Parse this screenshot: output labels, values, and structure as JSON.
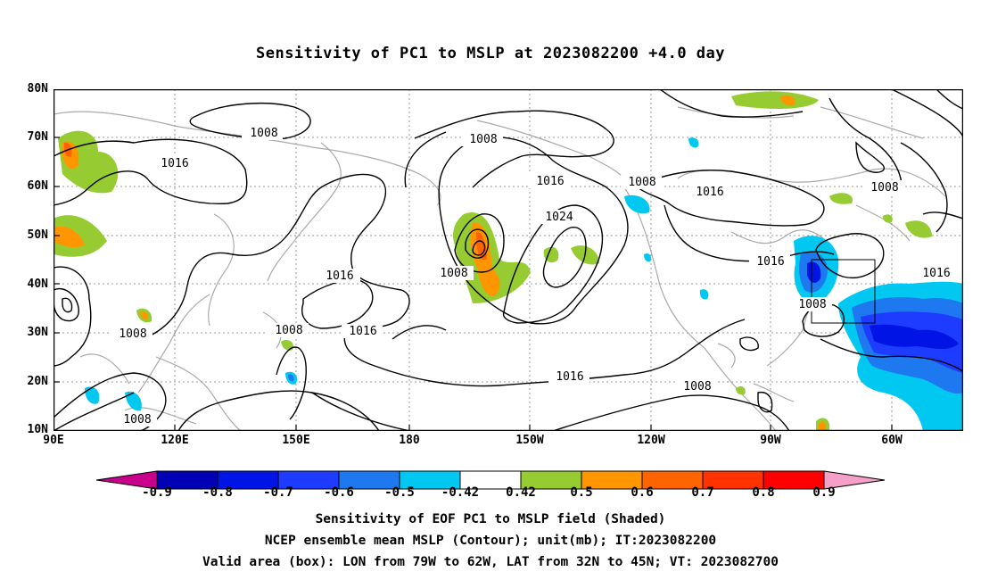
{
  "title": "Sensitivity of PC1 to MSLP at 2023082200 +4.0 day",
  "lat_labels": [
    "80N",
    "70N",
    "60N",
    "50N",
    "40N",
    "30N",
    "20N",
    "10N"
  ],
  "lon_labels": [
    "90E",
    "120E",
    "150E",
    "180",
    "150W",
    "120W",
    "90W",
    "60W"
  ],
  "colorbar": {
    "labels": [
      "-0.9",
      "-0.8",
      "-0.7",
      "-0.6",
      "-0.5",
      "-0.42",
      "0.42",
      "0.5",
      "0.6",
      "0.7",
      "0.8",
      "0.9"
    ],
    "colors": [
      "#c8008c",
      "#0000b4",
      "#0014e6",
      "#1e3cff",
      "#1e78f0",
      "#00c8f0",
      "#ffffff",
      "#96cc32",
      "#ff9600",
      "#ff6400",
      "#ff3200",
      "#ff0000",
      "#f5a0c8"
    ]
  },
  "contour_labels": [
    "1008",
    "1016",
    "1008",
    "1016",
    "1024",
    "1008",
    "1016",
    "1008",
    "1016",
    "1008",
    "1008",
    "1016",
    "1016",
    "1008",
    "1008",
    "1016",
    "1008",
    "1008",
    "1016"
  ],
  "captions": [
    "Sensitivity of EOF PC1 to MSLP field (Shaded)",
    "NCEP ensemble mean MSLP (Contour); unit(mb); IT:2023082200",
    "Valid area (box): LON from 79W to 62W, LAT from 32N to 45N; VT: 2023082700"
  ]
}
